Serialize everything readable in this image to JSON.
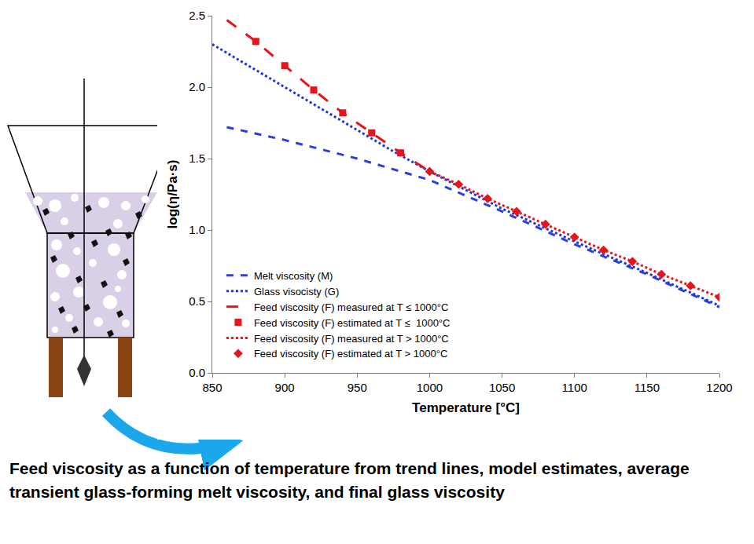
{
  "chart_data": {
    "type": "line",
    "caption": "Feed viscosity as a function of temperature from trend lines, model estimates, average transient glass-forming melt viscosity, and final glass viscosity",
    "x_label": "Temperature [°C]",
    "y_label": "log(η/Pa·s)",
    "xlim": [
      850,
      1200
    ],
    "xticks": [
      850,
      900,
      950,
      1000,
      1050,
      1100,
      1150,
      1200
    ],
    "ylim": [
      0,
      2.5
    ],
    "yticks": [
      {
        "value": 0,
        "label": "0.0"
      },
      0.5,
      {
        "value": 1,
        "label": "1.0"
      },
      1.5,
      {
        "value": 2,
        "label": "2.0"
      },
      2.5
    ],
    "grid": false,
    "legend": "bottom-left",
    "series": [
      {
        "name": "Melt viscosity (M)",
        "type": "line",
        "line_style": "dash",
        "color": "#2a3fe0",
        "x": [
          860,
          900,
          950,
          1000,
          1050,
          1100,
          1150,
          1200
        ],
        "values": [
          1.72,
          1.63,
          1.5,
          1.35,
          1.13,
          0.9,
          0.69,
          0.46
        ]
      },
      {
        "name": "Glass visocisty (G)",
        "type": "line",
        "line_style": "dot",
        "color": "#1c36d8",
        "x": [
          850,
          875,
          900,
          925,
          950,
          975,
          1000,
          1050,
          1100,
          1150,
          1200
        ],
        "values": [
          2.3,
          2.15,
          2.0,
          1.85,
          1.7,
          1.55,
          1.41,
          1.15,
          0.92,
          0.7,
          0.47
        ]
      },
      {
        "name": "Feed viscosity (F) measured at T ≤ 1000°C",
        "type": "line",
        "line_style": "longdash",
        "color": "#e8141c",
        "x": [
          860,
          880,
          900,
          920,
          940,
          960,
          980,
          1000
        ],
        "values": [
          2.47,
          2.32,
          2.15,
          1.98,
          1.82,
          1.68,
          1.54,
          1.41
        ]
      },
      {
        "name": "Feed viscosity (F) estimated at T ≤  1000°C",
        "type": "scatter",
        "marker": "square",
        "color": "#e8141c",
        "x": [
          880,
          900,
          920,
          940,
          960,
          980
        ],
        "values": [
          2.32,
          2.15,
          1.98,
          1.82,
          1.68,
          1.54
        ]
      },
      {
        "name": "Feed viscosity (F) measured at T > 1000°C",
        "type": "line",
        "line_style": "dot",
        "color": "#e8141c",
        "x": [
          1000,
          1020,
          1040,
          1060,
          1080,
          1100,
          1120,
          1140,
          1160,
          1180,
          1200
        ],
        "values": [
          1.41,
          1.32,
          1.22,
          1.13,
          1.04,
          0.95,
          0.86,
          0.78,
          0.69,
          0.61,
          0.53
        ]
      },
      {
        "name": "Feed viscosity (F) estimated at T > 1000°C",
        "type": "scatter",
        "marker": "diamond",
        "color": "#e8141c",
        "x": [
          1000,
          1020,
          1040,
          1060,
          1080,
          1100,
          1120,
          1140,
          1160,
          1180,
          1200
        ],
        "values": [
          1.41,
          1.32,
          1.22,
          1.13,
          1.04,
          0.95,
          0.86,
          0.78,
          0.69,
          0.61,
          0.53
        ]
      }
    ]
  }
}
